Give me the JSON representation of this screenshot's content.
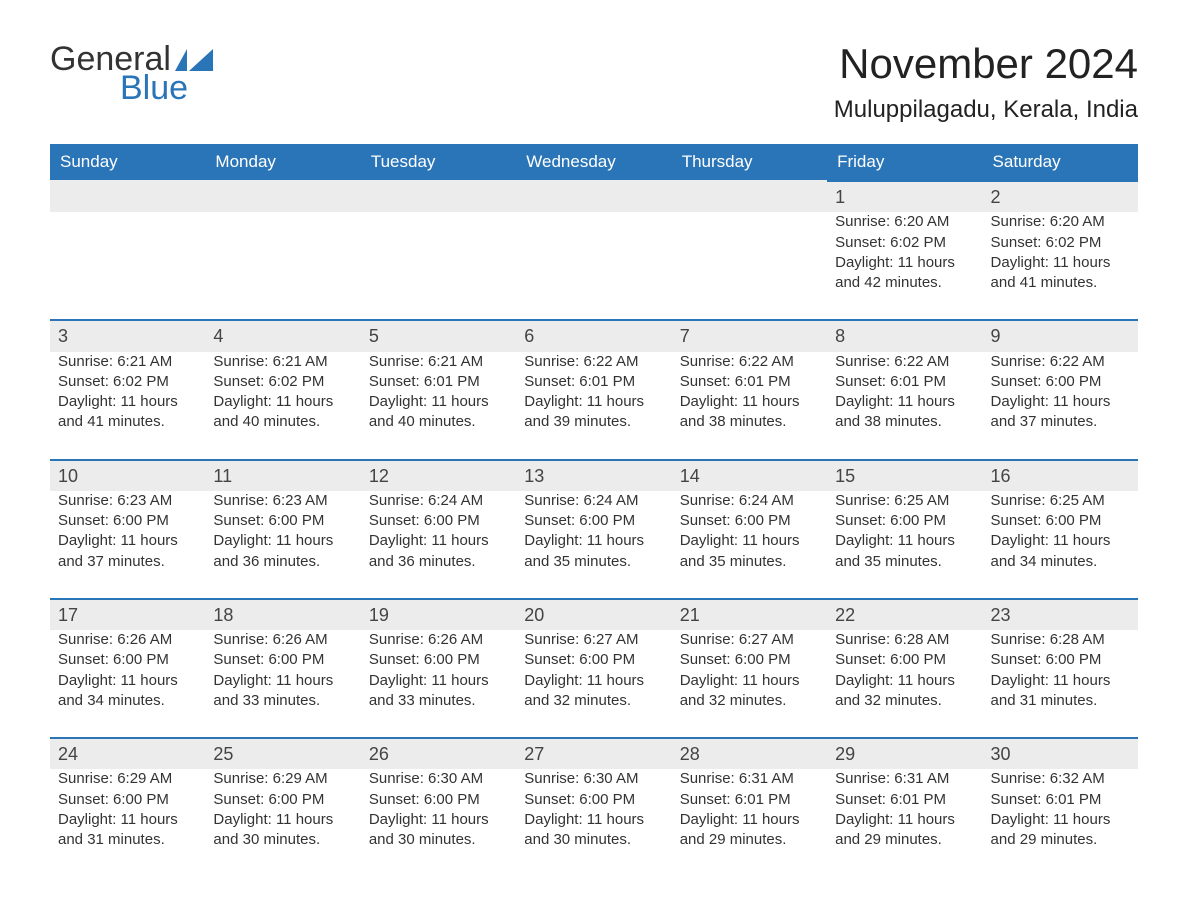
{
  "logo": {
    "general": "General",
    "blue": "Blue",
    "iconColor": "#2a74b8"
  },
  "title": "November 2024",
  "location": "Muluppilagadu, Kerala, India",
  "colors": {
    "headerBg": "#2a74b8",
    "headerText": "#ffffff",
    "dayStripBg": "#ececec",
    "dayStripBorder": "#2a74b8",
    "bodyText": "#333333",
    "background": "#ffffff"
  },
  "dayHeaders": [
    "Sunday",
    "Monday",
    "Tuesday",
    "Wednesday",
    "Thursday",
    "Friday",
    "Saturday"
  ],
  "weeks": [
    [
      null,
      null,
      null,
      null,
      null,
      {
        "n": "1",
        "sr": "6:20 AM",
        "ss": "6:02 PM",
        "dl": "11 hours and 42 minutes."
      },
      {
        "n": "2",
        "sr": "6:20 AM",
        "ss": "6:02 PM",
        "dl": "11 hours and 41 minutes."
      }
    ],
    [
      {
        "n": "3",
        "sr": "6:21 AM",
        "ss": "6:02 PM",
        "dl": "11 hours and 41 minutes."
      },
      {
        "n": "4",
        "sr": "6:21 AM",
        "ss": "6:02 PM",
        "dl": "11 hours and 40 minutes."
      },
      {
        "n": "5",
        "sr": "6:21 AM",
        "ss": "6:01 PM",
        "dl": "11 hours and 40 minutes."
      },
      {
        "n": "6",
        "sr": "6:22 AM",
        "ss": "6:01 PM",
        "dl": "11 hours and 39 minutes."
      },
      {
        "n": "7",
        "sr": "6:22 AM",
        "ss": "6:01 PM",
        "dl": "11 hours and 38 minutes."
      },
      {
        "n": "8",
        "sr": "6:22 AM",
        "ss": "6:01 PM",
        "dl": "11 hours and 38 minutes."
      },
      {
        "n": "9",
        "sr": "6:22 AM",
        "ss": "6:00 PM",
        "dl": "11 hours and 37 minutes."
      }
    ],
    [
      {
        "n": "10",
        "sr": "6:23 AM",
        "ss": "6:00 PM",
        "dl": "11 hours and 37 minutes."
      },
      {
        "n": "11",
        "sr": "6:23 AM",
        "ss": "6:00 PM",
        "dl": "11 hours and 36 minutes."
      },
      {
        "n": "12",
        "sr": "6:24 AM",
        "ss": "6:00 PM",
        "dl": "11 hours and 36 minutes."
      },
      {
        "n": "13",
        "sr": "6:24 AM",
        "ss": "6:00 PM",
        "dl": "11 hours and 35 minutes."
      },
      {
        "n": "14",
        "sr": "6:24 AM",
        "ss": "6:00 PM",
        "dl": "11 hours and 35 minutes."
      },
      {
        "n": "15",
        "sr": "6:25 AM",
        "ss": "6:00 PM",
        "dl": "11 hours and 35 minutes."
      },
      {
        "n": "16",
        "sr": "6:25 AM",
        "ss": "6:00 PM",
        "dl": "11 hours and 34 minutes."
      }
    ],
    [
      {
        "n": "17",
        "sr": "6:26 AM",
        "ss": "6:00 PM",
        "dl": "11 hours and 34 minutes."
      },
      {
        "n": "18",
        "sr": "6:26 AM",
        "ss": "6:00 PM",
        "dl": "11 hours and 33 minutes."
      },
      {
        "n": "19",
        "sr": "6:26 AM",
        "ss": "6:00 PM",
        "dl": "11 hours and 33 minutes."
      },
      {
        "n": "20",
        "sr": "6:27 AM",
        "ss": "6:00 PM",
        "dl": "11 hours and 32 minutes."
      },
      {
        "n": "21",
        "sr": "6:27 AM",
        "ss": "6:00 PM",
        "dl": "11 hours and 32 minutes."
      },
      {
        "n": "22",
        "sr": "6:28 AM",
        "ss": "6:00 PM",
        "dl": "11 hours and 32 minutes."
      },
      {
        "n": "23",
        "sr": "6:28 AM",
        "ss": "6:00 PM",
        "dl": "11 hours and 31 minutes."
      }
    ],
    [
      {
        "n": "24",
        "sr": "6:29 AM",
        "ss": "6:00 PM",
        "dl": "11 hours and 31 minutes."
      },
      {
        "n": "25",
        "sr": "6:29 AM",
        "ss": "6:00 PM",
        "dl": "11 hours and 30 minutes."
      },
      {
        "n": "26",
        "sr": "6:30 AM",
        "ss": "6:00 PM",
        "dl": "11 hours and 30 minutes."
      },
      {
        "n": "27",
        "sr": "6:30 AM",
        "ss": "6:00 PM",
        "dl": "11 hours and 30 minutes."
      },
      {
        "n": "28",
        "sr": "6:31 AM",
        "ss": "6:01 PM",
        "dl": "11 hours and 29 minutes."
      },
      {
        "n": "29",
        "sr": "6:31 AM",
        "ss": "6:01 PM",
        "dl": "11 hours and 29 minutes."
      },
      {
        "n": "30",
        "sr": "6:32 AM",
        "ss": "6:01 PM",
        "dl": "11 hours and 29 minutes."
      }
    ]
  ],
  "labels": {
    "sunrise": "Sunrise: ",
    "sunset": "Sunset: ",
    "daylight": "Daylight: "
  }
}
